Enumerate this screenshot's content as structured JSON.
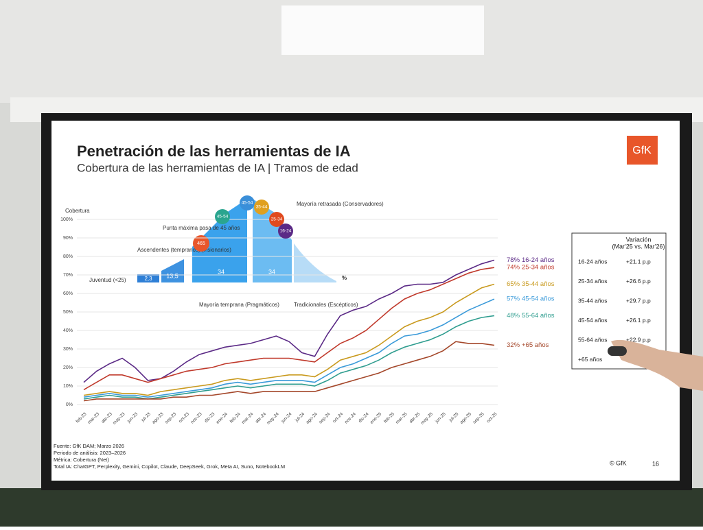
{
  "chart_data": {
    "type": "line",
    "title": "Penetración de las herramientas de IA",
    "subtitle": "Cobertura de las herramientas de IA | Tramos de edad",
    "y_label": "Cobertura",
    "categories": [
      "feb-23",
      "mar-23",
      "abr-23",
      "may-23",
      "jun-23",
      "jul-23",
      "ago-23",
      "sep-23",
      "oct-23",
      "nov-23",
      "dic-23",
      "ene-24",
      "feb-24",
      "mar-24",
      "abr-24",
      "may-24",
      "jun-24",
      "jul-24",
      "ago-24",
      "sep-24",
      "oct-24",
      "nov-24",
      "dic-24",
      "ene-25",
      "feb-25",
      "mar-25",
      "abr-25",
      "may-25",
      "jun-25",
      "jul-25",
      "ago-25",
      "sep-25",
      "oct-25"
    ],
    "ylim": [
      0,
      100
    ],
    "yticks": [
      {
        "value": 0,
        "label": "0%"
      },
      {
        "value": 10,
        "label": "10%"
      },
      {
        "value": 20,
        "label": "20%"
      },
      {
        "value": 30,
        "label": "30%"
      },
      {
        "value": 40,
        "label": "40%"
      },
      {
        "value": 50,
        "label": "50%"
      },
      {
        "value": 60,
        "label": "60%"
      },
      {
        "value": 70,
        "label": "70%"
      },
      {
        "value": 80,
        "label": "80%"
      },
      {
        "value": 90,
        "label": "90%"
      },
      {
        "value": 100,
        "label": "100%"
      }
    ],
    "grid": true,
    "series": [
      {
        "name": "16-24 años",
        "color": "#5b2a86",
        "end_label": "78%",
        "values": [
          12,
          18,
          22,
          25,
          20,
          13,
          14,
          18,
          23,
          27,
          29,
          31,
          32,
          33,
          35,
          37,
          34,
          28,
          26,
          38,
          48,
          51,
          53,
          57,
          60,
          64,
          65,
          65,
          66,
          70,
          73,
          76,
          78
        ]
      },
      {
        "name": "25-34 años",
        "color": "#c0392b",
        "end_label": "74%",
        "values": [
          8,
          12,
          16,
          16,
          14,
          12,
          14,
          16,
          18,
          19,
          20,
          22,
          23,
          24,
          25,
          25,
          25,
          24,
          23,
          28,
          33,
          36,
          40,
          46,
          52,
          57,
          60,
          62,
          65,
          68,
          71,
          73,
          74
        ]
      },
      {
        "name": "35-44 años",
        "color": "#c99a1e",
        "end_label": "65%",
        "values": [
          5,
          6,
          7,
          6,
          6,
          5,
          7,
          8,
          9,
          10,
          11,
          13,
          14,
          13,
          14,
          15,
          16,
          16,
          15,
          19,
          24,
          26,
          28,
          32,
          37,
          42,
          45,
          47,
          50,
          55,
          59,
          63,
          65
        ]
      },
      {
        "name": "45-54 años",
        "color": "#3a9ad9",
        "end_label": "57%",
        "values": [
          4,
          5,
          6,
          5,
          5,
          4,
          5,
          6,
          7,
          8,
          9,
          11,
          12,
          11,
          12,
          13,
          13,
          13,
          12,
          16,
          20,
          22,
          25,
          28,
          33,
          37,
          38,
          40,
          43,
          47,
          51,
          54,
          57
        ]
      },
      {
        "name": "55-64 años",
        "color": "#2f9d8f",
        "end_label": "48%",
        "values": [
          3,
          4,
          5,
          4,
          4,
          3,
          4,
          5,
          6,
          7,
          8,
          9,
          10,
          9,
          10,
          11,
          11,
          11,
          10,
          13,
          17,
          19,
          21,
          24,
          28,
          31,
          33,
          35,
          38,
          42,
          45,
          47,
          48
        ]
      },
      {
        "name": "+65 años",
        "color": "#a4472a",
        "end_label": "32%",
        "values": [
          2,
          3,
          3,
          3,
          3,
          3,
          3,
          4,
          4,
          5,
          5,
          6,
          7,
          6,
          7,
          7,
          7,
          7,
          7,
          9,
          11,
          13,
          15,
          17,
          20,
          22,
          24,
          26,
          29,
          34,
          33,
          33,
          32
        ]
      }
    ]
  },
  "inset": {
    "youth": "Juventud (<25)",
    "youth_value": "2,3",
    "early_label": "Ascendentes (tempranos) (visionarios)",
    "early_value": "13,5",
    "peak": "Punta máxima pasa de 45 años",
    "peak_badge": "465",
    "early_majority": "Mayoría temprana (Pragmáticos)",
    "early_majority_value": "34",
    "late_majority": "Mayoría retrasada (Conservadores)",
    "late_majority_value": "34",
    "laggards": "Tradicionales (Escépticos)",
    "unit": "%",
    "badges": [
      "45-54",
      "45-54",
      "35-44",
      "25-34",
      "16-24"
    ]
  },
  "table": {
    "header": "Variación",
    "subheader": "(Mar'25 vs. Mar'26)",
    "rows": [
      [
        "16-24 años",
        "+21.1 p.p"
      ],
      [
        "25-34 años",
        "+26.6 p.p"
      ],
      [
        "35-44 años",
        "+29.7 p.p"
      ],
      [
        "45-54 años",
        "+26.1 p.p"
      ],
      [
        "55-64 años",
        "+22.9 p.p"
      ],
      [
        "+65 años"
      ]
    ]
  },
  "footer": {
    "source": "Fuente: GfK DAM; Marzo 2026",
    "period": "Periodo de análisis: 2023–2026",
    "metric": "Métrica: Cobertura (Net)",
    "tools": "Total IA: ChatGPT, Perplexity, Gemini, Copilot, Claude, DeepSeek, Grok, Meta AI, Suno, NotebookLM",
    "copyright": "© GfK",
    "page": "16"
  },
  "logo": "GfK"
}
